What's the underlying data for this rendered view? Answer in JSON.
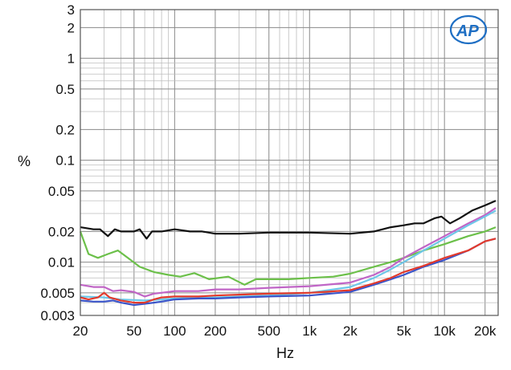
{
  "chart_data": {
    "type": "line",
    "xlabel": "Hz",
    "ylabel": "%",
    "x_scale": "log",
    "y_scale": "log",
    "xlim": [
      20,
      25000
    ],
    "ylim": [
      0.003,
      3
    ],
    "grid": true,
    "x_ticks": [
      {
        "v": 20,
        "t": "20"
      },
      {
        "v": 50,
        "t": "50"
      },
      {
        "v": 100,
        "t": "100"
      },
      {
        "v": 200,
        "t": "200"
      },
      {
        "v": 500,
        "t": "500"
      },
      {
        "v": 1000,
        "t": "1k"
      },
      {
        "v": 2000,
        "t": "2k"
      },
      {
        "v": 5000,
        "t": "5k"
      },
      {
        "v": 10000,
        "t": "10k"
      },
      {
        "v": 20000,
        "t": "20k"
      }
    ],
    "y_ticks": [
      {
        "v": 3,
        "t": "3"
      },
      {
        "v": 2,
        "t": "2"
      },
      {
        "v": 1,
        "t": "1"
      },
      {
        "v": 0.5,
        "t": "0.5"
      },
      {
        "v": 0.2,
        "t": "0.2"
      },
      {
        "v": 0.1,
        "t": "0.1"
      },
      {
        "v": 0.05,
        "t": "0.05"
      },
      {
        "v": 0.02,
        "t": "0.02"
      },
      {
        "v": 0.01,
        "t": "0.01"
      },
      {
        "v": 0.005,
        "t": "0.005"
      },
      {
        "v": 0.003,
        "t": "0.003"
      }
    ],
    "series": [
      {
        "color": "#111111",
        "points": [
          [
            20,
            0.022
          ],
          [
            25,
            0.021
          ],
          [
            28,
            0.021
          ],
          [
            32,
            0.018
          ],
          [
            36,
            0.021
          ],
          [
            40,
            0.02
          ],
          [
            50,
            0.02
          ],
          [
            55,
            0.021
          ],
          [
            62,
            0.017
          ],
          [
            68,
            0.02
          ],
          [
            80,
            0.02
          ],
          [
            100,
            0.021
          ],
          [
            130,
            0.02
          ],
          [
            160,
            0.02
          ],
          [
            200,
            0.019
          ],
          [
            300,
            0.019
          ],
          [
            500,
            0.0195
          ],
          [
            1000,
            0.0195
          ],
          [
            2000,
            0.019
          ],
          [
            3000,
            0.02
          ],
          [
            4000,
            0.022
          ],
          [
            5000,
            0.023
          ],
          [
            6000,
            0.024
          ],
          [
            7000,
            0.024
          ],
          [
            8500,
            0.027
          ],
          [
            9500,
            0.028
          ],
          [
            11000,
            0.024
          ],
          [
            13000,
            0.027
          ],
          [
            16000,
            0.032
          ],
          [
            20000,
            0.036
          ],
          [
            24000,
            0.04
          ]
        ]
      },
      {
        "color": "#6cc04a",
        "points": [
          [
            20,
            0.02
          ],
          [
            23,
            0.012
          ],
          [
            27,
            0.011
          ],
          [
            32,
            0.012
          ],
          [
            38,
            0.013
          ],
          [
            45,
            0.011
          ],
          [
            55,
            0.009
          ],
          [
            70,
            0.008
          ],
          [
            90,
            0.0075
          ],
          [
            110,
            0.0072
          ],
          [
            140,
            0.0078
          ],
          [
            180,
            0.0068
          ],
          [
            250,
            0.0072
          ],
          [
            330,
            0.006
          ],
          [
            400,
            0.0068
          ],
          [
            500,
            0.0068
          ],
          [
            700,
            0.0068
          ],
          [
            1000,
            0.007
          ],
          [
            1500,
            0.0072
          ],
          [
            2000,
            0.0077
          ],
          [
            3000,
            0.009
          ],
          [
            4000,
            0.01
          ],
          [
            5000,
            0.011
          ],
          [
            7000,
            0.013
          ],
          [
            10000,
            0.015
          ],
          [
            15000,
            0.018
          ],
          [
            20000,
            0.02
          ],
          [
            24000,
            0.022
          ]
        ]
      },
      {
        "color": "#c065c6",
        "points": [
          [
            20,
            0.006
          ],
          [
            25,
            0.0057
          ],
          [
            30,
            0.0057
          ],
          [
            35,
            0.0052
          ],
          [
            40,
            0.0053
          ],
          [
            50,
            0.0051
          ],
          [
            60,
            0.0046
          ],
          [
            70,
            0.0049
          ],
          [
            80,
            0.005
          ],
          [
            100,
            0.0052
          ],
          [
            150,
            0.0052
          ],
          [
            200,
            0.0054
          ],
          [
            300,
            0.0054
          ],
          [
            500,
            0.0056
          ],
          [
            1000,
            0.0058
          ],
          [
            2000,
            0.0063
          ],
          [
            3000,
            0.0075
          ],
          [
            4000,
            0.009
          ],
          [
            5000,
            0.011
          ],
          [
            7000,
            0.014
          ],
          [
            10000,
            0.018
          ],
          [
            15000,
            0.024
          ],
          [
            20000,
            0.029
          ],
          [
            24000,
            0.034
          ]
        ]
      },
      {
        "color": "#6ec7e8",
        "points": [
          [
            20,
            0.0046
          ],
          [
            30,
            0.0045
          ],
          [
            40,
            0.0043
          ],
          [
            60,
            0.0042
          ],
          [
            80,
            0.0043
          ],
          [
            100,
            0.0044
          ],
          [
            200,
            0.0045
          ],
          [
            500,
            0.0047
          ],
          [
            1000,
            0.005
          ],
          [
            2000,
            0.0057
          ],
          [
            3000,
            0.007
          ],
          [
            4000,
            0.0085
          ],
          [
            5000,
            0.01
          ],
          [
            7000,
            0.013
          ],
          [
            10000,
            0.017
          ],
          [
            15000,
            0.023
          ],
          [
            20000,
            0.028
          ],
          [
            24000,
            0.032
          ]
        ]
      },
      {
        "color": "#3b55c9",
        "points": [
          [
            20,
            0.0042
          ],
          [
            25,
            0.0041
          ],
          [
            30,
            0.0041
          ],
          [
            35,
            0.0042
          ],
          [
            40,
            0.004
          ],
          [
            50,
            0.0038
          ],
          [
            60,
            0.0039
          ],
          [
            70,
            0.004
          ],
          [
            80,
            0.0041
          ],
          [
            100,
            0.0043
          ],
          [
            150,
            0.0044
          ],
          [
            200,
            0.0044
          ],
          [
            300,
            0.0045
          ],
          [
            500,
            0.0046
          ],
          [
            1000,
            0.0047
          ],
          [
            2000,
            0.0051
          ],
          [
            3000,
            0.006
          ],
          [
            4000,
            0.0068
          ],
          [
            5000,
            0.0075
          ],
          [
            7000,
            0.009
          ],
          [
            10000,
            0.0105
          ],
          [
            15000,
            0.013
          ],
          [
            20000,
            0.016
          ],
          [
            24000,
            0.017
          ]
        ]
      },
      {
        "color": "#e23a2c",
        "points": [
          [
            20,
            0.0045
          ],
          [
            23,
            0.0043
          ],
          [
            27,
            0.0045
          ],
          [
            30,
            0.005
          ],
          [
            33,
            0.0045
          ],
          [
            40,
            0.0042
          ],
          [
            50,
            0.004
          ],
          [
            60,
            0.004
          ],
          [
            70,
            0.0043
          ],
          [
            80,
            0.0045
          ],
          [
            100,
            0.0046
          ],
          [
            150,
            0.0046
          ],
          [
            200,
            0.0047
          ],
          [
            300,
            0.0048
          ],
          [
            500,
            0.0049
          ],
          [
            1000,
            0.005
          ],
          [
            2000,
            0.0053
          ],
          [
            3000,
            0.0062
          ],
          [
            4000,
            0.007
          ],
          [
            5000,
            0.008
          ],
          [
            7000,
            0.0092
          ],
          [
            10000,
            0.011
          ],
          [
            15000,
            0.013
          ],
          [
            20000,
            0.016
          ],
          [
            24000,
            0.017
          ]
        ]
      }
    ]
  },
  "logo": {
    "text": "AP",
    "color": "#1f6fc4"
  }
}
